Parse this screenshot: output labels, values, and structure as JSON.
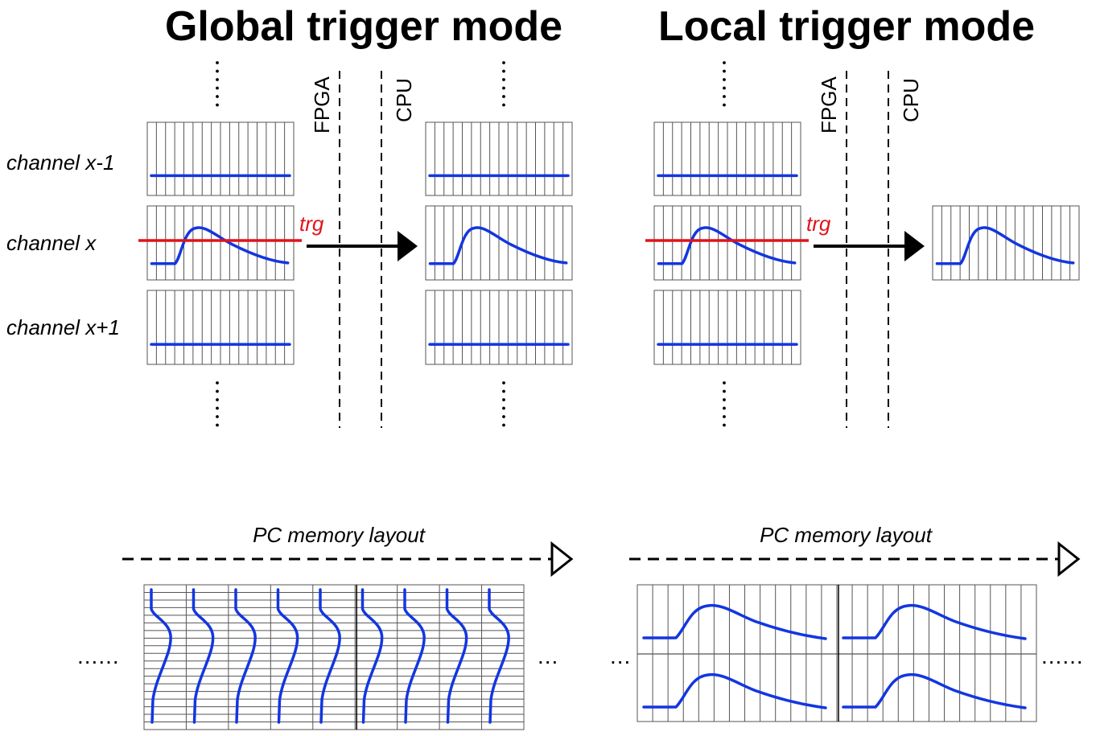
{
  "global": {
    "title": "Global trigger mode",
    "channels": [
      "channel x-1",
      "channel x",
      "channel x+1"
    ],
    "fpga_label": "FPGA",
    "cpu_label": "CPU",
    "trigger_label": "trg",
    "memory_label": "PC memory layout",
    "left_ellipsis": "......",
    "right_ellipsis": "..."
  },
  "local": {
    "title": "Local trigger mode",
    "fpga_label": "FPGA",
    "cpu_label": "CPU",
    "trigger_label": "trg",
    "memory_label": "PC memory layout",
    "left_ellipsis": "...",
    "right_ellipsis": "......"
  },
  "colors": {
    "waveform": "#1336e0",
    "trigger_line": "#e0141c",
    "grid": "#555555",
    "ink": "#000000"
  }
}
